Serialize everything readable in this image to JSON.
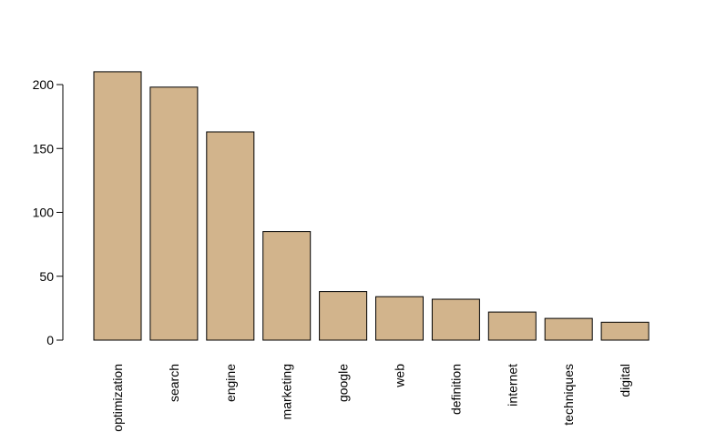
{
  "chart_data": {
    "type": "bar",
    "title": "",
    "xlabel": "",
    "ylabel": "",
    "categories": [
      "optimization",
      "search",
      "engine",
      "marketing",
      "google",
      "web",
      "definition",
      "internet",
      "techniques",
      "digital"
    ],
    "values": [
      210,
      198,
      163,
      85,
      38,
      34,
      32,
      22,
      17,
      14
    ],
    "ylim": [
      0,
      220
    ],
    "yticks": [
      0,
      50,
      100,
      150,
      200
    ],
    "grid": false,
    "legend": "none",
    "bar_color": "#D2B48C",
    "bar_edge_color": "#000000",
    "x_tick_rotation": "vertical"
  }
}
